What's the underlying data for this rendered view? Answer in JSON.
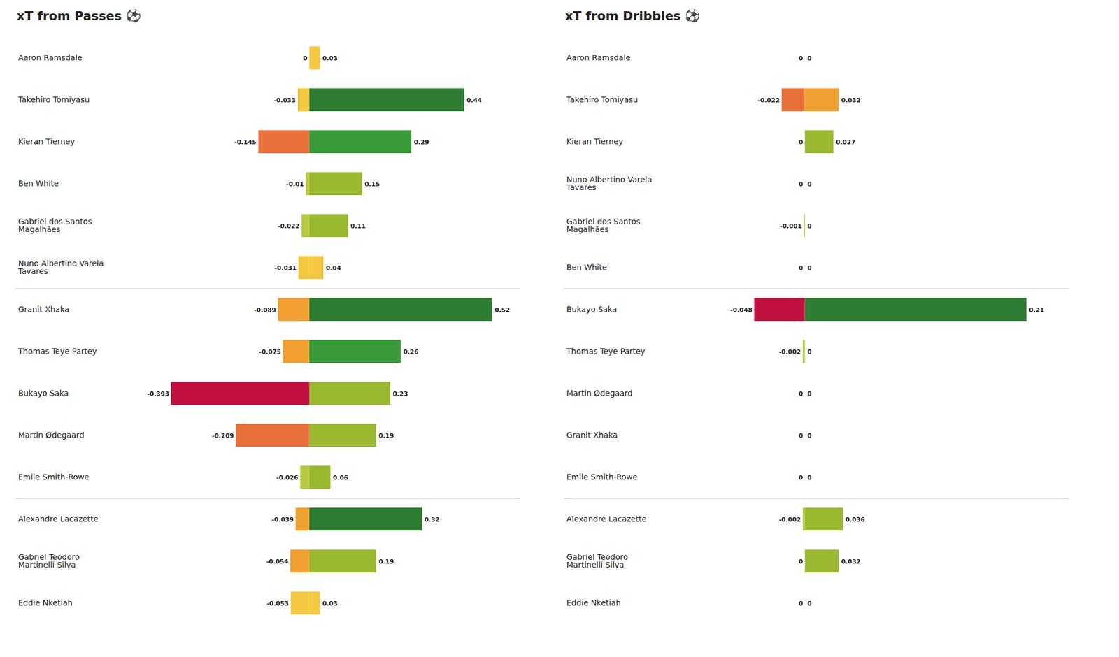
{
  "chart_data": [
    {
      "type": "bar",
      "orientation": "horizontal",
      "title": "xT from Passes",
      "annotation": "⚽",
      "categories": [
        "Aaron Ramsdale",
        "Takehiro Tomiyasu",
        "Kieran Tierney",
        "Ben White",
        "Gabriel dos Santos\nMagalhães",
        "Nuno Albertino Varela\nTavares",
        "Granit Xhaka",
        "Thomas Teye Partey",
        "Bukayo Saka",
        "Martin Ødegaard",
        "Emile Smith-Rowe",
        "Alexandre Lacazette",
        "Gabriel Teodoro\nMartinelli Silva",
        "Eddie Nketiah"
      ],
      "groups": [
        0,
        0,
        0,
        0,
        0,
        0,
        1,
        1,
        1,
        1,
        1,
        2,
        2,
        2
      ],
      "series": [
        {
          "values": [
            0,
            -0.033,
            -0.145,
            -0.01,
            -0.022,
            -0.031,
            -0.089,
            -0.075,
            -0.393,
            -0.209,
            -0.026,
            -0.039,
            -0.054,
            -0.053
          ],
          "colors": [
            "#F5C842",
            "#F5C842",
            "#E8703A",
            "#B8C840",
            "#B8C840",
            "#F5C842",
            "#F0A030",
            "#F0A030",
            "#C01040",
            "#E8703A",
            "#B8C840",
            "#F0A030",
            "#F0A030",
            "#F5C842"
          ]
        },
        {
          "values": [
            0.03,
            0.44,
            0.29,
            0.15,
            0.11,
            0.04,
            0.52,
            0.26,
            0.23,
            0.19,
            0.06,
            0.32,
            0.19,
            0.03
          ],
          "colors": [
            "#F5C842",
            "#2E7D32",
            "#3A9A3A",
            "#9AB830",
            "#9AB830",
            "#F5C842",
            "#2E7D32",
            "#3A9A3A",
            "#9AB830",
            "#9AB830",
            "#9AB830",
            "#2E7D32",
            "#9AB830",
            "#F5C842"
          ]
        }
      ],
      "xlim": [
        -0.45,
        0.6
      ],
      "tick_labels": "y",
      "grid": false,
      "data_labels": true
    },
    {
      "type": "bar",
      "orientation": "horizontal",
      "title": "xT from Dribbles",
      "annotation": "⚽",
      "categories": [
        "Aaron Ramsdale",
        "Takehiro Tomiyasu",
        "Kieran Tierney",
        "Nuno Albertino Varela\nTavares",
        "Gabriel dos Santos\nMagalhães",
        "Ben White",
        "Bukayo Saka",
        "Thomas Teye Partey",
        "Martin Ødegaard",
        "Granit Xhaka",
        "Emile Smith-Rowe",
        "Alexandre Lacazette",
        "Gabriel Teodoro\nMartinelli Silva",
        "Eddie Nketiah"
      ],
      "groups": [
        0,
        0,
        0,
        0,
        0,
        0,
        1,
        1,
        1,
        1,
        1,
        2,
        2,
        2
      ],
      "series": [
        {
          "values": [
            0,
            -0.022,
            0,
            0,
            -0.001,
            0,
            -0.048,
            -0.002,
            0,
            0,
            0,
            -0.002,
            0,
            0
          ],
          "colors": [
            "#F5C842",
            "#E8703A",
            "#F5C842",
            "#F5C842",
            "#B8C840",
            "#F5C842",
            "#C01040",
            "#B8C840",
            "#F5C842",
            "#F5C842",
            "#F5C842",
            "#B8C840",
            "#F5C842",
            "#F5C842"
          ]
        },
        {
          "values": [
            0,
            0.032,
            0.027,
            0,
            0,
            0,
            0.21,
            0,
            0,
            0,
            0,
            0.036,
            0.032,
            0
          ],
          "colors": [
            "#F5C842",
            "#F0A030",
            "#9AB830",
            "#F5C842",
            "#F5C842",
            "#F5C842",
            "#2E7D32",
            "#F5C842",
            "#F5C842",
            "#F5C842",
            "#F5C842",
            "#9AB830",
            "#9AB830",
            "#F5C842"
          ]
        }
      ],
      "xlim": [
        -0.1,
        0.25
      ],
      "tick_labels": "y",
      "grid": false,
      "data_labels": true
    }
  ]
}
